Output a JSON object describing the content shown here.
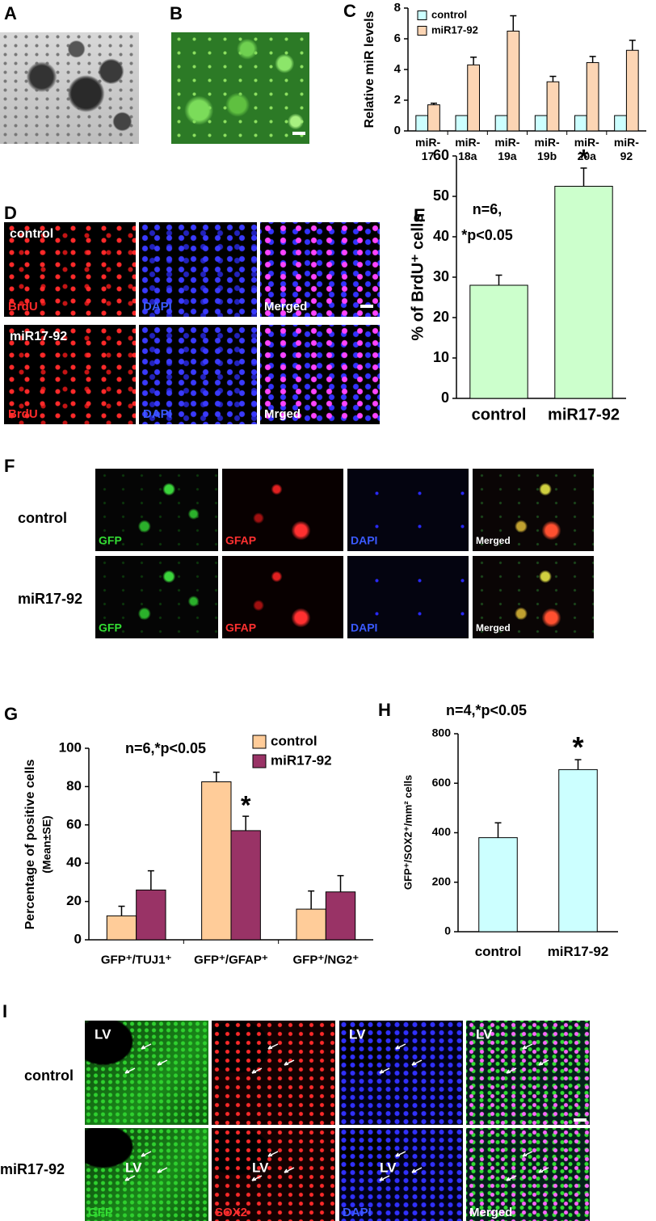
{
  "panel_labels": [
    "A",
    "B",
    "C",
    "D",
    "E",
    "F",
    "G",
    "H",
    "I"
  ],
  "chart_data": [
    {
      "type": "bar",
      "y_label": "Relative miR levels",
      "categories": [
        "miR-17",
        "miR-18a",
        "miR-19a",
        "miR-19b",
        "miR-20a",
        "miR-92"
      ],
      "series": [
        {
          "name": "control",
          "color": "#ccffff",
          "values": [
            1,
            1,
            1,
            1,
            1,
            1
          ]
        },
        {
          "name": "miR17-92",
          "color": "#fcd5b4",
          "values": [
            1.7,
            4.3,
            6.5,
            3.2,
            4.45,
            5.25
          ],
          "errors": [
            0.1,
            0.5,
            1.0,
            0.35,
            0.4,
            0.65
          ]
        }
      ],
      "ylim": [
        0,
        8
      ],
      "yticks": [
        0,
        2,
        4,
        6,
        8
      ],
      "legend": "upper left"
    },
    {
      "type": "bar",
      "y_label": "% of BrdU⁺ cells",
      "annotation": [
        "n=6,",
        "*p<0.05"
      ],
      "categories": [
        "control",
        "miR17-92"
      ],
      "values": [
        28,
        52.5
      ],
      "errors": [
        2.5,
        4.5
      ],
      "markers": [
        null,
        "*"
      ],
      "color": "#ccffcc",
      "ylim": [
        0,
        60
      ],
      "yticks": [
        0,
        10,
        20,
        30,
        40,
        50,
        60
      ]
    },
    {
      "type": "bar",
      "y_label": "Percentage of positive cells",
      "y_sublabel": "(Mean±SE)",
      "annotation": [
        "n=6,*p<0.05"
      ],
      "categories": [
        "GFP⁺/TUJ1⁺",
        "GFP⁺/GFAP⁺",
        "GFP⁺/NG2⁺"
      ],
      "series": [
        {
          "name": "control",
          "color": "#ffcc99",
          "values": [
            12.5,
            82.5,
            16
          ],
          "errors": [
            5,
            5,
            9.5
          ]
        },
        {
          "name": "miR17-92",
          "color": "#993366",
          "values": [
            26,
            57,
            25
          ],
          "errors": [
            10,
            7.5,
            8.5
          ],
          "markers": [
            null,
            "*",
            null
          ]
        }
      ],
      "ylim": [
        0,
        100
      ],
      "yticks": [
        0,
        20,
        40,
        60,
        80,
        100
      ],
      "legend": "upper right"
    },
    {
      "type": "bar",
      "y_label": "GFP⁺/SOX2⁺/mm² cells",
      "annotation": [
        "n=4,*p<0.05"
      ],
      "categories": [
        "control",
        "miR17-92"
      ],
      "values": [
        380,
        655
      ],
      "errors": [
        60,
        40
      ],
      "markers": [
        null,
        "*"
      ],
      "color": "#ccffff",
      "ylim": [
        0,
        800
      ],
      "yticks": [
        0,
        200,
        400,
        600,
        800
      ]
    }
  ],
  "panel_D": {
    "row_labels": [
      "control",
      "miR17-92"
    ],
    "channels": [
      [
        "BrdU",
        "DAPI",
        "Merged"
      ],
      [
        "BrdU",
        "DAPI",
        "Mrged"
      ]
    ]
  },
  "panel_F": {
    "row_labels": [
      "control",
      "miR17-92"
    ],
    "channels": [
      [
        "GFP",
        "GFAP",
        "DAPI",
        "Merged"
      ],
      [
        "GFP",
        "GFAP",
        "DAPI",
        "Merged"
      ]
    ]
  },
  "panel_I": {
    "row_labels": [
      "control",
      "miR17-92"
    ],
    "channels": [
      [
        "GFP",
        "SOX2",
        "DAPI",
        "Merged"
      ]
    ],
    "region_labels": [
      [
        "LV",
        null,
        "LV",
        "LV"
      ],
      [
        "LV",
        "LV",
        "LV",
        null
      ]
    ]
  }
}
